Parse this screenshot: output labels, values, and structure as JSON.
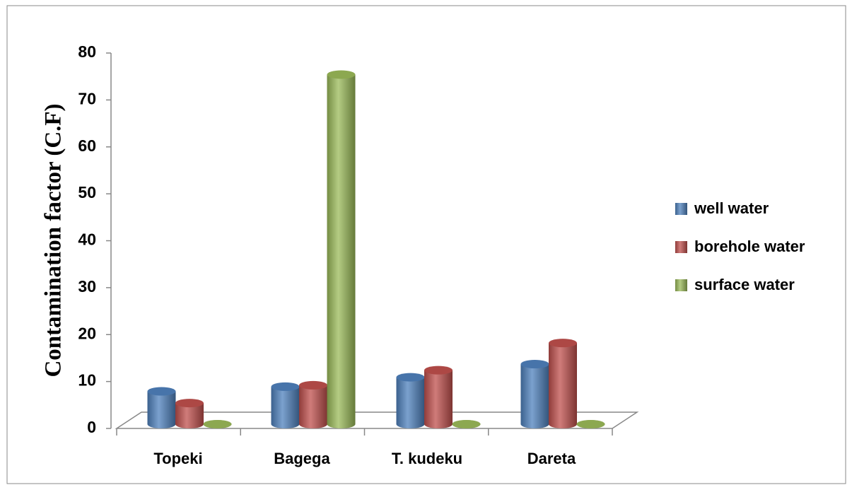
{
  "chart_data": {
    "type": "bar",
    "y_label": "Contamination factor (C.F)",
    "categories": [
      "Topeki",
      "Bagega",
      "T. kudeku",
      "Dareta"
    ],
    "series": [
      {
        "name": "well water",
        "color": "#4f81bd",
        "values": [
          7,
          8,
          10,
          12.8
        ]
      },
      {
        "name": "borehole water",
        "color": "#c0504d",
        "values": [
          4.5,
          8.3,
          11.5,
          17.3
        ]
      },
      {
        "name": "surface water",
        "color": "#9bbb59",
        "values": [
          0,
          74.5,
          0,
          0
        ]
      }
    ],
    "ylim": [
      0,
      80
    ],
    "yticks": [
      0,
      10,
      20,
      30,
      40,
      50,
      60,
      70,
      80
    ]
  }
}
